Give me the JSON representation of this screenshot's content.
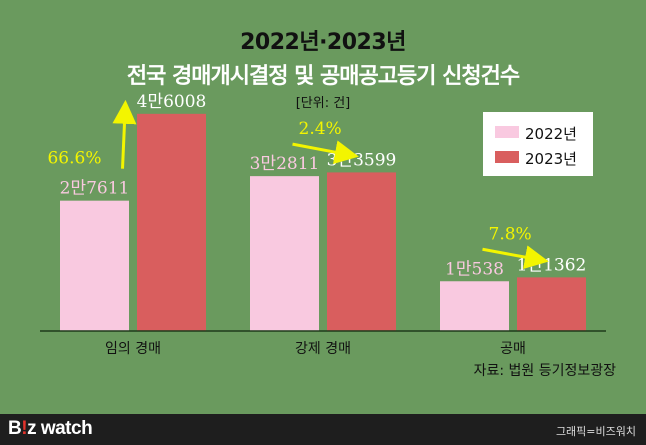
{
  "header": {
    "title_line1": "2022년·2023년",
    "title_line2": "전국 경매개시결정 및 공매공고등기 신청건수",
    "unit": "[단위: 건]"
  },
  "source": "자료: 법원 등기정보광장",
  "footer": {
    "logo_b": "B",
    "logo_bang": "!",
    "logo_rest": "z watch",
    "credit": "그래픽=비즈워치"
  },
  "colors": {
    "background": "#6a9a5e",
    "series_2022": "#f9c9e0",
    "series_2023": "#d95e5e",
    "arrow": "#f3f500"
  },
  "chart_data": {
    "type": "bar",
    "categories": [
      "임의 경매",
      "강제 경매",
      "공매"
    ],
    "series": [
      {
        "name": "2022년",
        "values": [
          27611,
          32811,
          10538
        ],
        "labels": [
          "2만7611",
          "3만2811",
          "1만538"
        ]
      },
      {
        "name": "2023년",
        "values": [
          46008,
          33599,
          11362
        ],
        "labels": [
          "4만6008",
          "3만3599",
          "1만1362"
        ]
      }
    ],
    "annotations": [
      "66.6%",
      "2.4%",
      "7.8%"
    ],
    "legend": "top-right",
    "ylim": [
      0,
      50000
    ],
    "grid": false
  }
}
